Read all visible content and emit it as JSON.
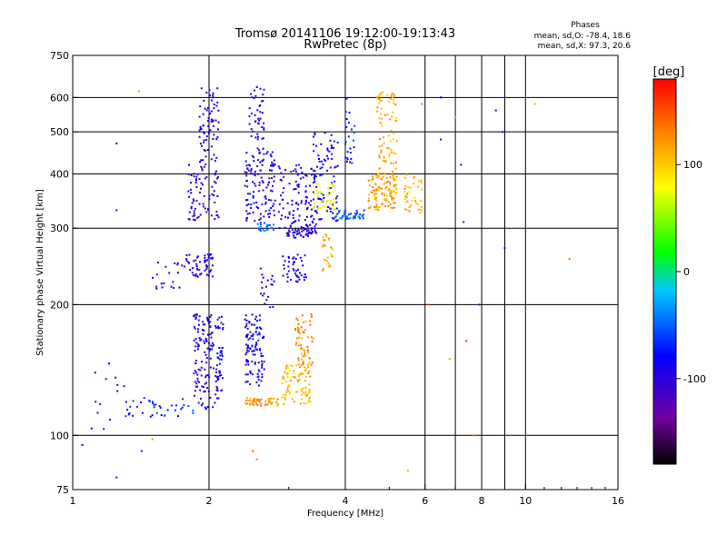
{
  "header": {
    "title_line1": "Tromsø 20141106 19:12:00-19:13:43",
    "title_line2": "RwPretec (8p)",
    "phases_title": "Phases",
    "phases_o": "mean, sd,O: -78.4, 18.6",
    "phases_x": "mean, sd,X:  97.3, 20.6"
  },
  "chart_data": {
    "type": "scatter",
    "title": "Tromsø 20141106 19:12:00-19:13:43",
    "subtitle": "RwPretec (8p)",
    "xlabel": "Frequency [MHz]",
    "ylabel": "Stationary phase Virtual Height [km]",
    "x_scale": "log",
    "y_scale": "log",
    "xlim": [
      1,
      16
    ],
    "ylim": [
      75,
      750
    ],
    "x_ticks": [
      1,
      2,
      4,
      6,
      8,
      10,
      16
    ],
    "x_tick_labels": [
      "1",
      "2",
      "4",
      "6",
      "8",
      "10",
      "16"
    ],
    "x_gridlines": [
      2,
      4,
      6,
      7,
      8,
      9,
      10
    ],
    "y_ticks": [
      75,
      100,
      200,
      300,
      400,
      500,
      600,
      750
    ],
    "y_tick_labels": [
      "75",
      "100",
      "200",
      "300",
      "400",
      "500",
      "600",
      "750"
    ],
    "grid": true,
    "color_variable": "phase",
    "colorbar": {
      "label": "[deg]",
      "range": [
        -180,
        180
      ],
      "ticks": [
        100,
        0,
        -100
      ],
      "tick_labels": [
        "100",
        "0",
        "-100"
      ],
      "colors": [
        "#000000",
        "#7000a0",
        "#0000ff",
        "#00c8ff",
        "#00ff00",
        "#ffff00",
        "#ff8c00",
        "#ff0000"
      ]
    },
    "clusters": [
      {
        "x": [
          1.85,
          2.15
        ],
        "y": [
          115,
          190
        ],
        "phase": -95,
        "n": 170
      },
      {
        "x": [
          1.78,
          2.05
        ],
        "y": [
          230,
          262
        ],
        "phase": -90,
        "n": 55
      },
      {
        "x": [
          1.8,
          2.1
        ],
        "y": [
          310,
          420
        ],
        "phase": -100,
        "n": 75
      },
      {
        "x": [
          1.9,
          2.1
        ],
        "y": [
          420,
          630
        ],
        "phase": -95,
        "n": 70
      },
      {
        "x": [
          1.3,
          1.85
        ],
        "y": [
          110,
          122
        ],
        "phase": -70,
        "n": 40
      },
      {
        "x": [
          1.1,
          1.3
        ],
        "y": [
          100,
          150
        ],
        "phase": -100,
        "n": 12
      },
      {
        "x": [
          1.5,
          1.8
        ],
        "y": [
          215,
          250
        ],
        "phase": -95,
        "n": 20
      },
      {
        "x": [
          2.4,
          2.65
        ],
        "y": [
          130,
          190
        ],
        "phase": -85,
        "n": 110
      },
      {
        "x": [
          2.4,
          2.85
        ],
        "y": [
          117,
          122
        ],
        "phase": 120,
        "n": 55
      },
      {
        "x": [
          2.4,
          2.8
        ],
        "y": [
          310,
          450
        ],
        "phase": -95,
        "n": 120
      },
      {
        "x": [
          2.45,
          2.65
        ],
        "y": [
          450,
          640
        ],
        "phase": -95,
        "n": 45
      },
      {
        "x": [
          2.6,
          2.8
        ],
        "y": [
          195,
          245
        ],
        "phase": -90,
        "n": 20
      },
      {
        "x": [
          2.55,
          2.8
        ],
        "y": [
          295,
          310
        ],
        "phase": -40,
        "n": 20
      },
      {
        "x": [
          2.9,
          3.35
        ],
        "y": [
          118,
          145
        ],
        "phase": 110,
        "n": 90
      },
      {
        "x": [
          3.1,
          3.4
        ],
        "y": [
          145,
          190
        ],
        "phase": 125,
        "n": 60
      },
      {
        "x": [
          2.9,
          3.3
        ],
        "y": [
          225,
          262
        ],
        "phase": -90,
        "n": 45
      },
      {
        "x": [
          2.95,
          3.45
        ],
        "y": [
          285,
          300
        ],
        "phase": -100,
        "n": 55
      },
      {
        "x": [
          2.85,
          3.45
        ],
        "y": [
          300,
          420
        ],
        "phase": -95,
        "n": 110
      },
      {
        "x": [
          3.4,
          3.85
        ],
        "y": [
          310,
          500
        ],
        "phase": -85,
        "n": 85
      },
      {
        "x": [
          3.4,
          3.8
        ],
        "y": [
          330,
          380
        ],
        "phase": 80,
        "n": 40
      },
      {
        "x": [
          3.55,
          3.75
        ],
        "y": [
          240,
          290
        ],
        "phase": 115,
        "n": 25
      },
      {
        "x": [
          3.8,
          4.4
        ],
        "y": [
          315,
          330
        ],
        "phase": -50,
        "n": 40
      },
      {
        "x": [
          4.0,
          4.2
        ],
        "y": [
          420,
          600
        ],
        "phase": -80,
        "n": 25
      },
      {
        "x": [
          4.5,
          5.2
        ],
        "y": [
          330,
          400
        ],
        "phase": 115,
        "n": 120
      },
      {
        "x": [
          4.7,
          5.2
        ],
        "y": [
          400,
          620
        ],
        "phase": 115,
        "n": 75
      },
      {
        "x": [
          5.4,
          5.9
        ],
        "y": [
          320,
          400
        ],
        "phase": 110,
        "n": 40
      }
    ],
    "scattered_points": [
      {
        "x": 1.15,
        "y": 118,
        "phase": -120
      },
      {
        "x": 1.05,
        "y": 95,
        "phase": -80
      },
      {
        "x": 1.25,
        "y": 80,
        "phase": -100
      },
      {
        "x": 1.42,
        "y": 92,
        "phase": -110
      },
      {
        "x": 1.5,
        "y": 98,
        "phase": 130
      },
      {
        "x": 1.25,
        "y": 330,
        "phase": -100
      },
      {
        "x": 1.25,
        "y": 470,
        "phase": -100
      },
      {
        "x": 1.4,
        "y": 620,
        "phase": 120
      },
      {
        "x": 2.5,
        "y": 92,
        "phase": 140
      },
      {
        "x": 2.55,
        "y": 88,
        "phase": 130
      },
      {
        "x": 5.5,
        "y": 83,
        "phase": 110
      },
      {
        "x": 6.5,
        "y": 600,
        "phase": -80
      },
      {
        "x": 6.5,
        "y": 480,
        "phase": -100
      },
      {
        "x": 7.0,
        "y": 540,
        "phase": 120
      },
      {
        "x": 7.3,
        "y": 310,
        "phase": -100
      },
      {
        "x": 7.4,
        "y": 165,
        "phase": 160
      },
      {
        "x": 7.7,
        "y": 100,
        "phase": 140
      },
      {
        "x": 7.9,
        "y": 200,
        "phase": -120
      },
      {
        "x": 8.6,
        "y": 560,
        "phase": -90
      },
      {
        "x": 8.9,
        "y": 500,
        "phase": -100
      },
      {
        "x": 9.0,
        "y": 270,
        "phase": -100
      },
      {
        "x": 10.5,
        "y": 580,
        "phase": 110
      },
      {
        "x": 12.5,
        "y": 255,
        "phase": 140
      },
      {
        "x": 6.1,
        "y": 200,
        "phase": 150
      },
      {
        "x": 5.9,
        "y": 580,
        "phase": 130
      },
      {
        "x": 7.2,
        "y": 420,
        "phase": -110
      },
      {
        "x": 6.8,
        "y": 150,
        "phase": 120
      }
    ]
  }
}
